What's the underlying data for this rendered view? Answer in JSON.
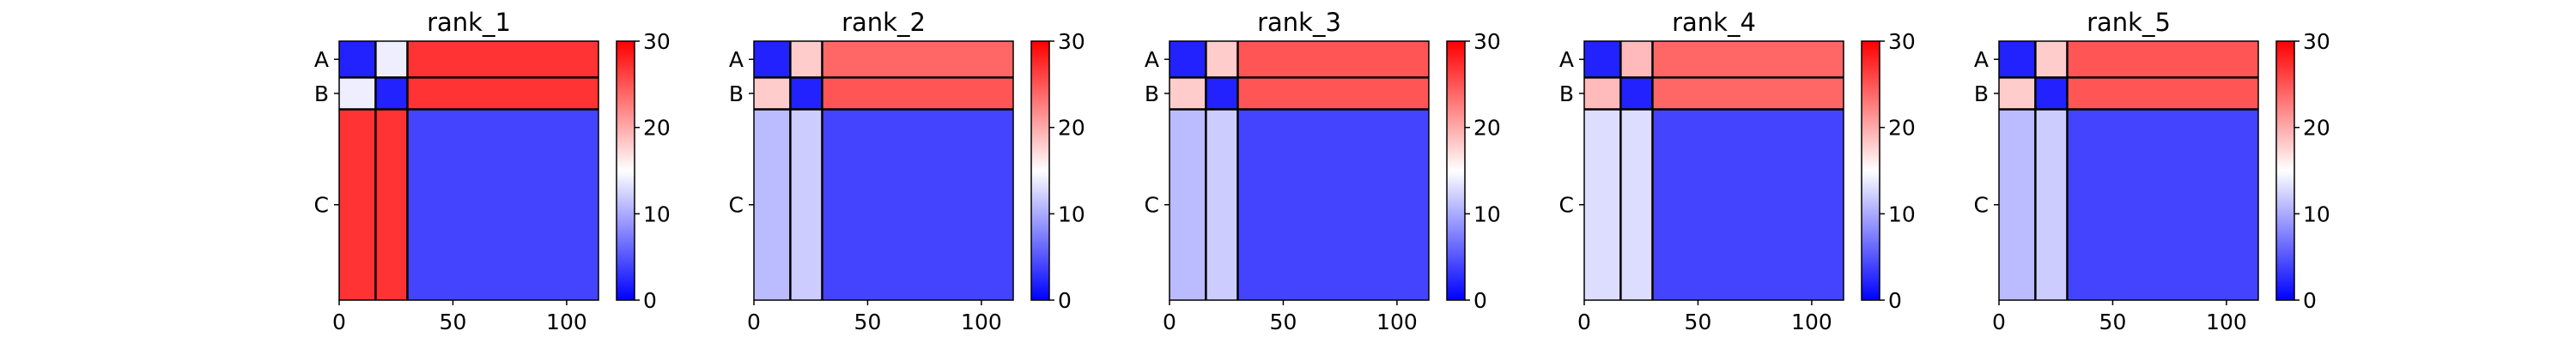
{
  "chart_data": [
    {
      "type": "heatmap",
      "title": "rank_1",
      "x_ticks": [
        0,
        50,
        100
      ],
      "xlim": [
        0,
        114
      ],
      "chain_labels": [
        "A",
        "B",
        "C"
      ],
      "chain_boundaries": [
        0,
        16,
        30,
        114
      ],
      "colorbar": {
        "ticks": [
          0,
          10,
          20,
          30
        ],
        "range": [
          0,
          30
        ],
        "colormap": "bwr"
      },
      "blocks": [
        [
          2,
          14,
          27
        ],
        [
          14,
          2,
          27
        ],
        [
          27,
          27,
          4
        ]
      ]
    },
    {
      "type": "heatmap",
      "title": "rank_2",
      "x_ticks": [
        0,
        50,
        100
      ],
      "xlim": [
        0,
        114
      ],
      "chain_labels": [
        "A",
        "B",
        "C"
      ],
      "chain_boundaries": [
        0,
        16,
        30,
        114
      ],
      "colorbar": {
        "ticks": [
          0,
          10,
          20,
          30
        ],
        "range": [
          0,
          30
        ],
        "colormap": "bwr"
      },
      "blocks": [
        [
          2,
          18,
          24
        ],
        [
          18,
          2,
          25
        ],
        [
          11,
          12,
          4
        ]
      ]
    },
    {
      "type": "heatmap",
      "title": "rank_3",
      "x_ticks": [
        0,
        50,
        100
      ],
      "xlim": [
        0,
        114
      ],
      "chain_labels": [
        "A",
        "B",
        "C"
      ],
      "chain_boundaries": [
        0,
        16,
        30,
        114
      ],
      "colorbar": {
        "ticks": [
          0,
          10,
          20,
          30
        ],
        "range": [
          0,
          30
        ],
        "colormap": "bwr"
      },
      "blocks": [
        [
          2,
          18,
          25
        ],
        [
          18,
          2,
          25
        ],
        [
          11,
          12,
          4
        ]
      ]
    },
    {
      "type": "heatmap",
      "title": "rank_4",
      "x_ticks": [
        0,
        50,
        100
      ],
      "xlim": [
        0,
        114
      ],
      "chain_labels": [
        "A",
        "B",
        "C"
      ],
      "chain_boundaries": [
        0,
        16,
        30,
        114
      ],
      "colorbar": {
        "ticks": [
          0,
          10,
          20,
          30
        ],
        "range": [
          0,
          30
        ],
        "colormap": "bwr"
      },
      "blocks": [
        [
          2,
          19,
          24
        ],
        [
          19,
          2,
          24
        ],
        [
          13,
          13,
          4
        ]
      ]
    },
    {
      "type": "heatmap",
      "title": "rank_5",
      "x_ticks": [
        0,
        50,
        100
      ],
      "xlim": [
        0,
        114
      ],
      "chain_labels": [
        "A",
        "B",
        "C"
      ],
      "chain_boundaries": [
        0,
        16,
        30,
        114
      ],
      "colorbar": {
        "ticks": [
          0,
          10,
          20,
          30
        ],
        "range": [
          0,
          30
        ],
        "colormap": "bwr"
      },
      "blocks": [
        [
          2,
          18,
          25
        ],
        [
          18,
          2,
          25
        ],
        [
          11,
          12,
          4
        ]
      ]
    }
  ]
}
